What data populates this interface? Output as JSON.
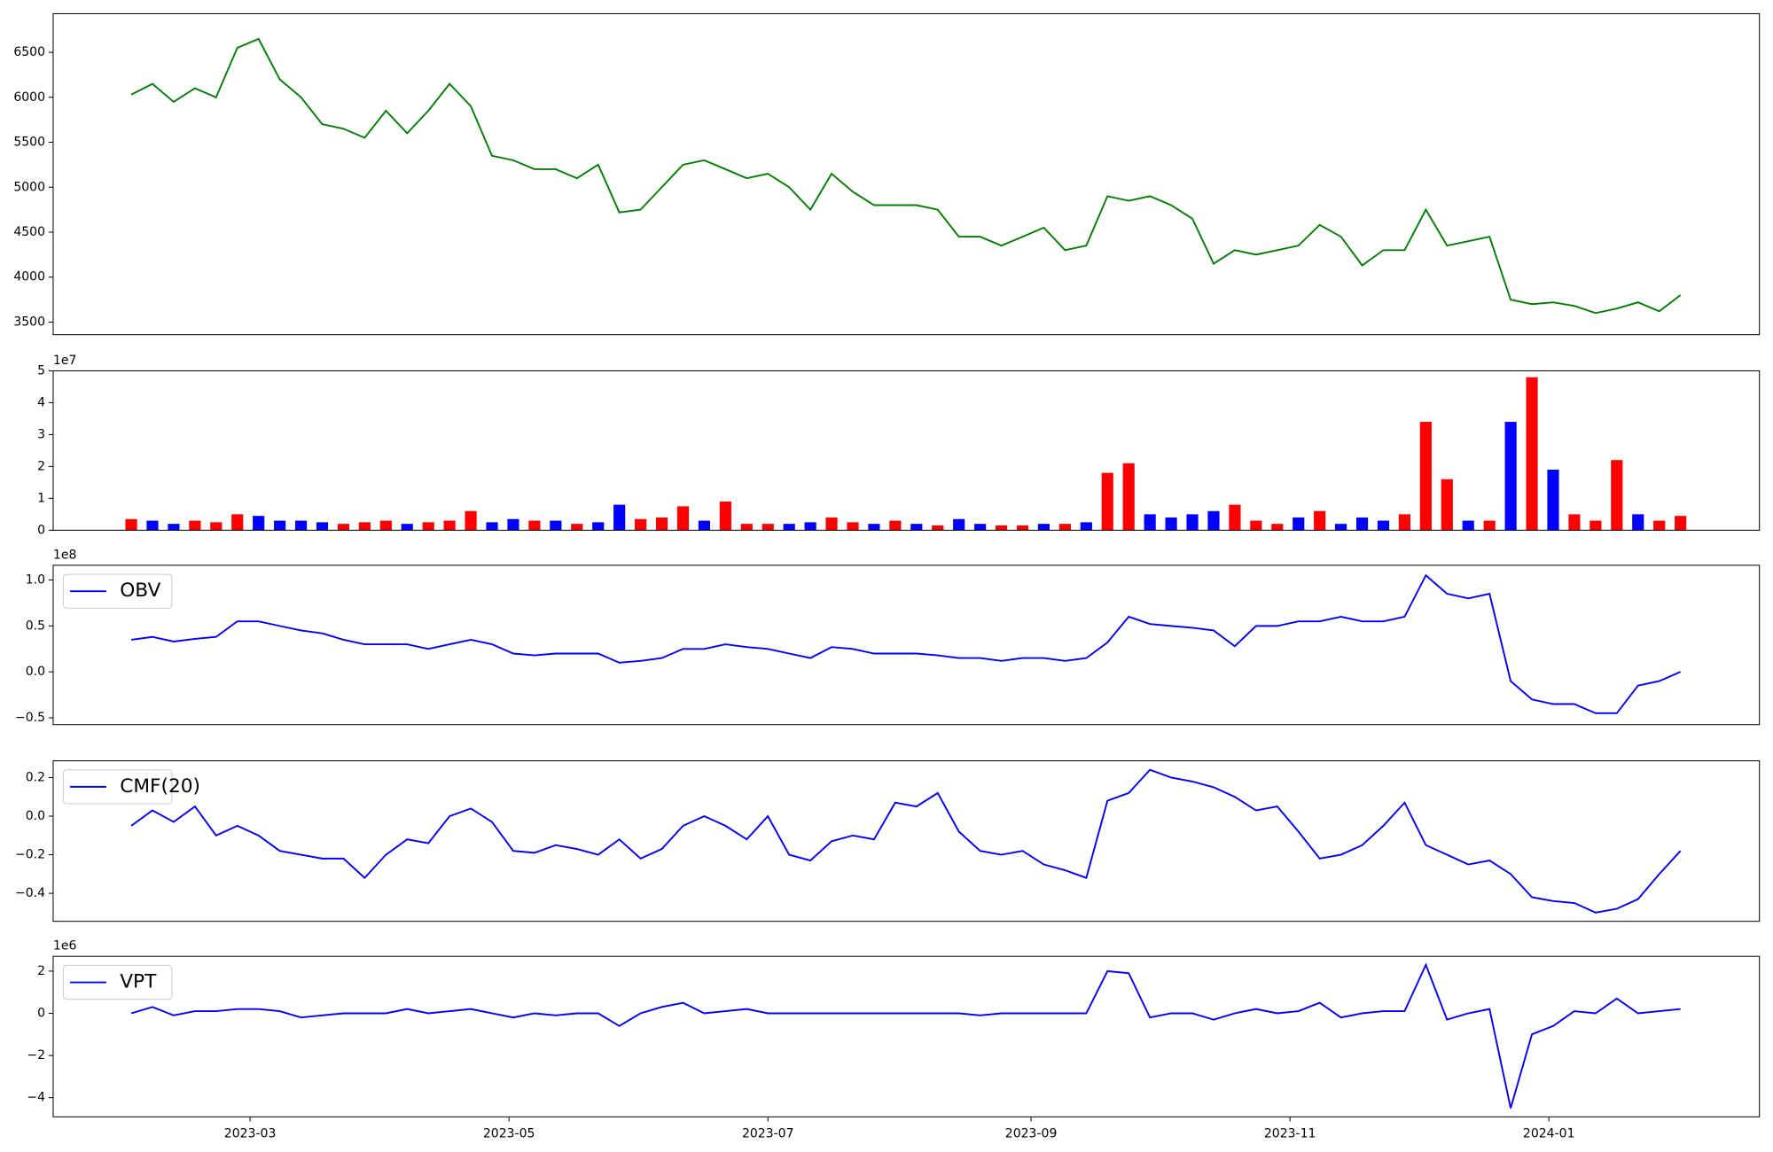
{
  "chart_data": [
    {
      "type": "line",
      "color": "#008000",
      "x": [
        19389,
        19394,
        19399,
        19404,
        19409,
        19414,
        19419,
        19424,
        19429,
        19434,
        19439,
        19444,
        19449,
        19454,
        19459,
        19464,
        19469,
        19474,
        19479,
        19484,
        19489,
        19494,
        19499,
        19504,
        19509,
        19514,
        19519,
        19524,
        19529,
        19534,
        19539,
        19544,
        19549,
        19554,
        19559,
        19564,
        19569,
        19574,
        19579,
        19584,
        19589,
        19594,
        19599,
        19604,
        19609,
        19614,
        19619,
        19624,
        19629,
        19634,
        19639,
        19644,
        19649,
        19654,
        19659,
        19664,
        19669,
        19674,
        19679,
        19684,
        19689,
        19694,
        19699,
        19704,
        19709,
        19714,
        19719,
        19724,
        19729,
        19734,
        19739,
        19744,
        19749,
        19754
      ],
      "values": [
        6030,
        6150,
        5950,
        6100,
        6000,
        6550,
        6650,
        6200,
        6000,
        5700,
        5650,
        5550,
        5850,
        5600,
        5850,
        6150,
        5900,
        5350,
        5300,
        5200,
        5200,
        5100,
        5250,
        4720,
        4750,
        5000,
        5250,
        5300,
        5200,
        5100,
        5150,
        5000,
        4750,
        5150,
        4950,
        4800,
        4800,
        4800,
        4750,
        4450,
        4450,
        4350,
        4450,
        4550,
        4300,
        4350,
        4900,
        4850,
        4900,
        4800,
        4650,
        4150,
        4300,
        4250,
        4300,
        4350,
        4580,
        4450,
        4130,
        4300,
        4300,
        4750,
        4350,
        4400,
        4450,
        3750,
        3700,
        3720,
        3680,
        3600,
        3650,
        3720,
        3620,
        3800
      ],
      "xlim": [
        19370.6,
        19772.6
      ],
      "ylim": [
        3360,
        6930
      ],
      "yticks": [
        3500,
        4000,
        4500,
        5000,
        5500,
        6000,
        6500
      ]
    },
    {
      "type": "bar",
      "offset_label": "1e7",
      "x": [
        19389,
        19394,
        19399,
        19404,
        19409,
        19414,
        19419,
        19424,
        19429,
        19434,
        19439,
        19444,
        19449,
        19454,
        19459,
        19464,
        19469,
        19474,
        19479,
        19484,
        19489,
        19494,
        19499,
        19504,
        19509,
        19514,
        19519,
        19524,
        19529,
        19534,
        19539,
        19544,
        19549,
        19554,
        19559,
        19564,
        19569,
        19574,
        19579,
        19584,
        19589,
        19594,
        19599,
        19604,
        19609,
        19614,
        19619,
        19624,
        19629,
        19634,
        19639,
        19644,
        19649,
        19654,
        19659,
        19664,
        19669,
        19674,
        19679,
        19684,
        19689,
        19694,
        19699,
        19704,
        19709,
        19714,
        19719,
        19724,
        19729,
        19734,
        19739,
        19744,
        19749,
        19754
      ],
      "values": [
        0.35,
        0.3,
        0.2,
        0.3,
        0.25,
        0.5,
        0.45,
        0.3,
        0.3,
        0.25,
        0.2,
        0.25,
        0.3,
        0.2,
        0.25,
        0.3,
        0.6,
        0.25,
        0.35,
        0.3,
        0.3,
        0.2,
        0.25,
        0.8,
        0.35,
        0.4,
        0.75,
        0.3,
        0.9,
        0.2,
        0.2,
        0.2,
        0.25,
        0.4,
        0.25,
        0.2,
        0.3,
        0.2,
        0.15,
        0.35,
        0.2,
        0.15,
        0.15,
        0.2,
        0.2,
        0.25,
        1.8,
        2.1,
        0.5,
        0.4,
        0.5,
        0.6,
        0.8,
        0.3,
        0.2,
        0.4,
        0.6,
        0.2,
        0.4,
        0.3,
        0.5,
        3.4,
        1.6,
        0.3,
        0.3,
        3.4,
        4.8,
        1.9,
        0.5,
        0.3,
        2.2,
        0.5,
        0.3,
        0.45
      ],
      "colors": [
        "#ff0000",
        "#0000ff",
        "#0000ff",
        "#ff0000",
        "#ff0000",
        "#ff0000",
        "#0000ff",
        "#0000ff",
        "#0000ff",
        "#0000ff",
        "#ff0000",
        "#ff0000",
        "#ff0000",
        "#0000ff",
        "#ff0000",
        "#ff0000",
        "#ff0000",
        "#0000ff",
        "#0000ff",
        "#ff0000",
        "#0000ff",
        "#ff0000",
        "#0000ff",
        "#0000ff",
        "#ff0000",
        "#ff0000",
        "#ff0000",
        "#0000ff",
        "#ff0000",
        "#ff0000",
        "#ff0000",
        "#0000ff",
        "#0000ff",
        "#ff0000",
        "#ff0000",
        "#0000ff",
        "#ff0000",
        "#0000ff",
        "#ff0000",
        "#0000ff",
        "#0000ff",
        "#ff0000",
        "#ff0000",
        "#0000ff",
        "#ff0000",
        "#0000ff",
        "#ff0000",
        "#ff0000",
        "#0000ff",
        "#0000ff",
        "#0000ff",
        "#0000ff",
        "#ff0000",
        "#ff0000",
        "#ff0000",
        "#0000ff",
        "#ff0000",
        "#0000ff",
        "#0000ff",
        "#0000ff",
        "#ff0000",
        "#ff0000",
        "#ff0000",
        "#0000ff",
        "#ff0000",
        "#0000ff",
        "#ff0000",
        "#0000ff",
        "#ff0000",
        "#ff0000",
        "#ff0000",
        "#0000ff",
        "#ff0000",
        "#ff0000"
      ],
      "xlim": [
        19370.6,
        19772.6
      ],
      "ylim": [
        0,
        5
      ],
      "yticks": [
        0,
        1,
        2,
        3,
        4,
        5
      ]
    },
    {
      "type": "line",
      "offset_label": "1e8",
      "legend": "upper left",
      "x": [
        19389,
        19394,
        19399,
        19404,
        19409,
        19414,
        19419,
        19424,
        19429,
        19434,
        19439,
        19444,
        19449,
        19454,
        19459,
        19464,
        19469,
        19474,
        19479,
        19484,
        19489,
        19494,
        19499,
        19504,
        19509,
        19514,
        19519,
        19524,
        19529,
        19534,
        19539,
        19544,
        19549,
        19554,
        19559,
        19564,
        19569,
        19574,
        19579,
        19584,
        19589,
        19594,
        19599,
        19604,
        19609,
        19614,
        19619,
        19624,
        19629,
        19634,
        19639,
        19644,
        19649,
        19654,
        19659,
        19664,
        19669,
        19674,
        19679,
        19684,
        19689,
        19694,
        19699,
        19704,
        19709,
        19714,
        19719,
        19724,
        19729,
        19734,
        19739,
        19744,
        19749,
        19754
      ],
      "series": [
        {
          "name": "OBV",
          "color": "#0000ff",
          "values": [
            0.35,
            0.38,
            0.33,
            0.36,
            0.38,
            0.55,
            0.55,
            0.5,
            0.45,
            0.42,
            0.35,
            0.3,
            0.3,
            0.3,
            0.25,
            0.3,
            0.35,
            0.3,
            0.2,
            0.18,
            0.2,
            0.2,
            0.2,
            0.1,
            0.12,
            0.15,
            0.25,
            0.25,
            0.3,
            0.27,
            0.25,
            0.2,
            0.15,
            0.27,
            0.25,
            0.2,
            0.2,
            0.2,
            0.18,
            0.15,
            0.15,
            0.12,
            0.15,
            0.15,
            0.12,
            0.15,
            0.32,
            0.6,
            0.52,
            0.5,
            0.48,
            0.45,
            0.28,
            0.5,
            0.5,
            0.55,
            0.55,
            0.6,
            0.55,
            0.55,
            0.6,
            1.05,
            0.85,
            0.8,
            0.85,
            -0.1,
            -0.3,
            -0.35,
            -0.35,
            -0.45,
            -0.45,
            -0.15,
            -0.1,
            0.0
          ]
        }
      ],
      "xlim": [
        19370.6,
        19772.6
      ],
      "ylim": [
        -0.574,
        1.16
      ],
      "yticks": [
        {
          "value": -0.5,
          "label": "−0.5"
        },
        {
          "value": 0,
          "label": "0.0"
        },
        0.5,
        {
          "value": 1,
          "label": "1.0"
        }
      ]
    },
    {
      "type": "line",
      "legend": "upper left",
      "x": [
        19389,
        19394,
        19399,
        19404,
        19409,
        19414,
        19419,
        19424,
        19429,
        19434,
        19439,
        19444,
        19449,
        19454,
        19459,
        19464,
        19469,
        19474,
        19479,
        19484,
        19489,
        19494,
        19499,
        19504,
        19509,
        19514,
        19519,
        19524,
        19529,
        19534,
        19539,
        19544,
        19549,
        19554,
        19559,
        19564,
        19569,
        19574,
        19579,
        19584,
        19589,
        19594,
        19599,
        19604,
        19609,
        19614,
        19619,
        19624,
        19629,
        19634,
        19639,
        19644,
        19649,
        19654,
        19659,
        19664,
        19669,
        19674,
        19679,
        19684,
        19689,
        19694,
        19699,
        19704,
        19709,
        19714,
        19719,
        19724,
        19729,
        19734,
        19739,
        19744,
        19749,
        19754
      ],
      "series": [
        {
          "name": "CMF(20)",
          "color": "#0000ff",
          "values": [
            -0.05,
            0.03,
            -0.03,
            0.05,
            -0.1,
            -0.05,
            -0.1,
            -0.18,
            -0.2,
            -0.22,
            -0.22,
            -0.32,
            -0.2,
            -0.12,
            -0.14,
            0.0,
            0.04,
            -0.03,
            -0.18,
            -0.19,
            -0.15,
            -0.17,
            -0.2,
            -0.12,
            -0.22,
            -0.17,
            -0.05,
            0.0,
            -0.05,
            -0.12,
            0.0,
            -0.2,
            -0.23,
            -0.13,
            -0.1,
            -0.12,
            0.07,
            0.05,
            0.12,
            -0.08,
            -0.18,
            -0.2,
            -0.18,
            -0.25,
            -0.28,
            -0.32,
            0.08,
            0.12,
            0.24,
            0.2,
            0.18,
            0.15,
            0.1,
            0.03,
            0.05,
            -0.08,
            -0.22,
            -0.2,
            -0.15,
            -0.05,
            0.07,
            -0.15,
            -0.2,
            -0.25,
            -0.23,
            -0.3,
            -0.42,
            -0.44,
            -0.45,
            -0.5,
            -0.48,
            -0.43,
            -0.3,
            -0.18
          ]
        }
      ],
      "xlim": [
        19370.6,
        19772.6
      ],
      "ylim": [
        -0.545,
        0.287
      ],
      "yticks": [
        {
          "value": -0.4,
          "label": "−0.4"
        },
        {
          "value": -0.2,
          "label": "−0.2"
        },
        {
          "value": 0,
          "label": "0.0"
        },
        0.2
      ]
    },
    {
      "type": "line",
      "offset_label": "1e6",
      "legend": "upper left",
      "x": [
        19389,
        19394,
        19399,
        19404,
        19409,
        19414,
        19419,
        19424,
        19429,
        19434,
        19439,
        19444,
        19449,
        19454,
        19459,
        19464,
        19469,
        19474,
        19479,
        19484,
        19489,
        19494,
        19499,
        19504,
        19509,
        19514,
        19519,
        19524,
        19529,
        19534,
        19539,
        19544,
        19549,
        19554,
        19559,
        19564,
        19569,
        19574,
        19579,
        19584,
        19589,
        19594,
        19599,
        19604,
        19609,
        19614,
        19619,
        19624,
        19629,
        19634,
        19639,
        19644,
        19649,
        19654,
        19659,
        19664,
        19669,
        19674,
        19679,
        19684,
        19689,
        19694,
        19699,
        19704,
        19709,
        19714,
        19719,
        19724,
        19729,
        19734,
        19739,
        19744,
        19749,
        19754
      ],
      "series": [
        {
          "name": "VPT",
          "color": "#0000ff",
          "values": [
            0,
            0.3,
            -0.1,
            0.1,
            0.1,
            0.2,
            0.2,
            0.1,
            -0.2,
            -0.1,
            0,
            0,
            0,
            0.2,
            0,
            0.1,
            0.2,
            0,
            -0.2,
            0,
            -0.1,
            0,
            0,
            -0.6,
            0,
            0.3,
            0.5,
            0,
            0.1,
            0.2,
            0,
            0,
            0,
            0,
            0,
            0,
            0,
            0,
            0,
            0,
            -0.1,
            0,
            0,
            0,
            0,
            0,
            2.0,
            1.9,
            -0.2,
            0,
            0,
            -0.3,
            0,
            0.2,
            0,
            0.1,
            0.5,
            -0.2,
            0,
            0.1,
            0.1,
            2.3,
            -0.3,
            0,
            0.2,
            -4.5,
            -1.0,
            -0.6,
            0.1,
            0,
            0.7,
            0,
            0.1,
            0.2
          ]
        }
      ],
      "xlim": [
        19370.6,
        19772.6
      ],
      "ylim": [
        -4.91,
        2.7
      ],
      "yticks": [
        {
          "value": -4,
          "label": "−4"
        },
        {
          "value": -2,
          "label": "−2"
        },
        0,
        2
      ],
      "xticks": [
        {
          "value": 19417,
          "label": "2023-03"
        },
        {
          "value": 19478,
          "label": "2023-05"
        },
        {
          "value": 19539,
          "label": "2023-07"
        },
        {
          "value": 19601,
          "label": "2023-09"
        },
        {
          "value": 19662,
          "label": "2023-11"
        },
        {
          "value": 19723,
          "label": "2024-01"
        }
      ]
    }
  ]
}
